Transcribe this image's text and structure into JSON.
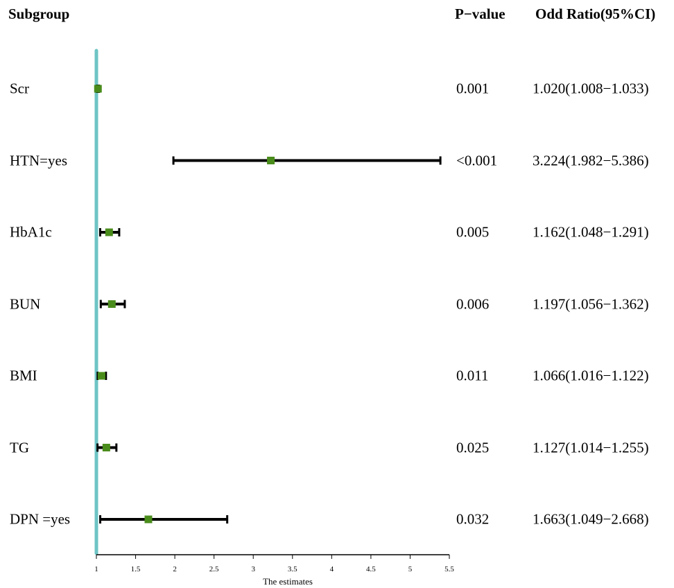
{
  "headers": {
    "subgroup": "Subgroup",
    "pvalue": "P−value",
    "odds_ratio": "Odd Ratio(95%CI)"
  },
  "rows": [
    {
      "label": "Scr",
      "pvalue": "0.001",
      "or_text": "1.020(1.008−1.033)"
    },
    {
      "label": "HTN=yes",
      "pvalue": "<0.001",
      "or_text": "3.224(1.982−5.386)"
    },
    {
      "label": "HbA1c",
      "pvalue": "0.005",
      "or_text": "1.162(1.048−1.291)"
    },
    {
      "label": "BUN",
      "pvalue": "0.006",
      "or_text": "1.197(1.056−1.362)"
    },
    {
      "label": "BMI",
      "pvalue": "0.011",
      "or_text": "1.066(1.016−1.122)"
    },
    {
      "label": "TG",
      "pvalue": "0.025",
      "or_text": "1.127(1.014−1.255)"
    },
    {
      "label": "DPN =yes",
      "pvalue": "0.032",
      "or_text": "1.663(1.049−2.668)"
    }
  ],
  "chart_data": {
    "type": "forest",
    "xlabel": "The estimates",
    "xlim": [
      1,
      5.5
    ],
    "xticks": [
      "1",
      "1.5",
      "2",
      "2.5",
      "3",
      "3.5",
      "4",
      "4.5",
      "5",
      "5.5"
    ],
    "reference_line": 1,
    "estimates": [
      {
        "label": "Scr",
        "or": 1.02,
        "lower": 1.008,
        "upper": 1.033
      },
      {
        "label": "HTN=yes",
        "or": 3.224,
        "lower": 1.982,
        "upper": 5.386
      },
      {
        "label": "HbA1c",
        "or": 1.162,
        "lower": 1.048,
        "upper": 1.291
      },
      {
        "label": "BUN",
        "or": 1.197,
        "lower": 1.056,
        "upper": 1.362
      },
      {
        "label": "BMI",
        "or": 1.066,
        "lower": 1.016,
        "upper": 1.122
      },
      {
        "label": "TG",
        "or": 1.127,
        "lower": 1.014,
        "upper": 1.255
      },
      {
        "label": "DPN =yes",
        "or": 1.663,
        "lower": 1.049,
        "upper": 2.668
      }
    ],
    "colors": {
      "reference_line": "#6ec4c4",
      "point": "#4a8c1c",
      "ci_line": "#000000"
    }
  }
}
